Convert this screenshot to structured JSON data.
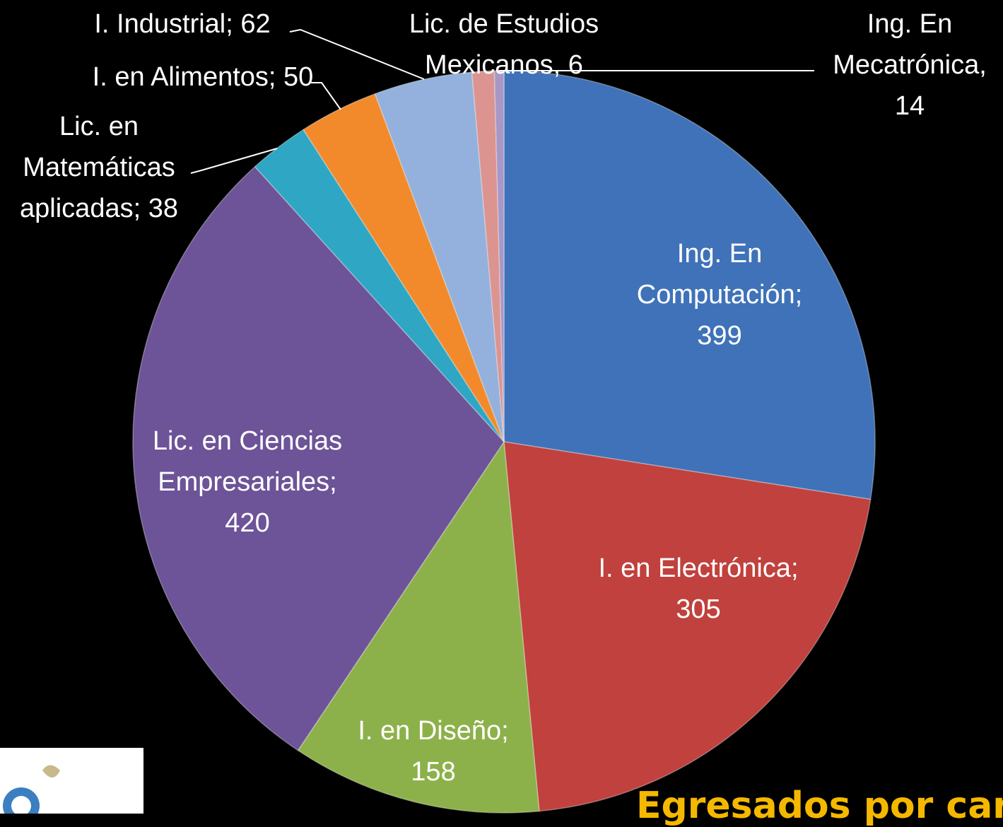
{
  "chart_data": {
    "type": "pie",
    "title": "Egresados por car",
    "categories": [
      "Ing. En Computación",
      "I. en Electrónica",
      "I. en Diseño",
      "Lic. en Ciencias Empresariales",
      "Lic. en Matemáticas aplicadas",
      "I. en Alimentos",
      "I. Industrial",
      "Ing. En Mecatrónica",
      "Lic. de Estudios Mexicanos"
    ],
    "values": [
      399,
      305,
      158,
      420,
      38,
      50,
      62,
      14,
      6
    ],
    "value_labels": [
      "Ing. En Computación; 399",
      "I. en Electrónica; 305",
      "I. en Diseño; 158",
      "Lic. en Ciencias Empresariales; 420",
      "Lic. en Matemáticas aplicadas; 38",
      "I. en Alimentos; 50",
      "I. Industrial; 62",
      "Ing. En Mecatrónica, 14",
      "Lic. de Estudios Mexicanos, 6"
    ],
    "colors": [
      "#3f72b8",
      "#c0413d",
      "#8db14a",
      "#6d5397",
      "#2ea6c4",
      "#f28a2c",
      "#93b1dc",
      "#dc9490",
      "#a898c8"
    ]
  }
}
